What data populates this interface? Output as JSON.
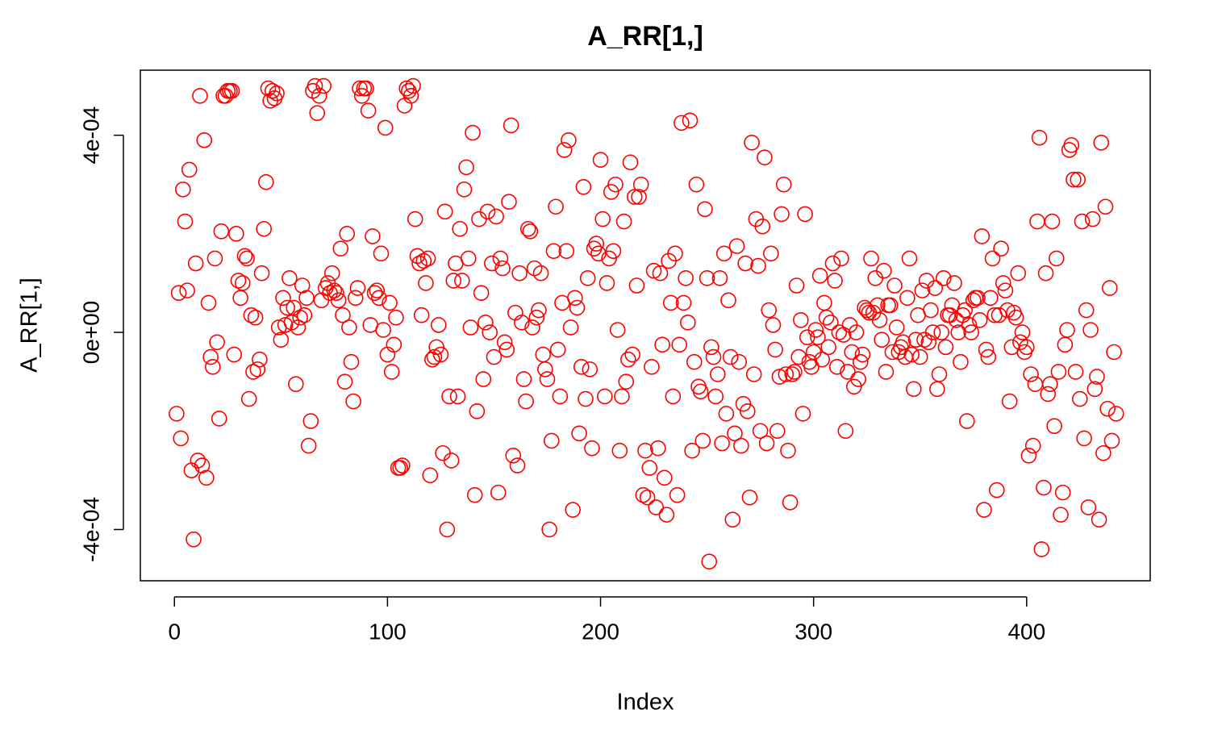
{
  "chart_data": {
    "type": "scatter",
    "title": "A_RR[1,]",
    "x_label": "Index",
    "y_label": "A_RR[1,]",
    "marker": "open-circle",
    "color": "#ff0000",
    "xlim": [
      -16,
      458
    ],
    "ylim": [
      -0.000504,
      0.000532
    ],
    "xticks": [
      0,
      100,
      200,
      300,
      400
    ],
    "yticks": [
      {
        "value": -0.0004,
        "label": "-4e-04"
      },
      {
        "value": 0,
        "label": "0e+00"
      },
      {
        "value": 0.0004,
        "label": "4e-04"
      }
    ],
    "series": [
      {
        "name": "A_RR[1,]",
        "color": "#ff0000",
        "x": [
          1,
          2,
          3,
          4,
          5,
          6,
          7,
          8,
          9,
          10,
          11,
          12,
          13,
          14,
          15,
          16,
          17,
          18,
          19,
          20,
          21,
          22,
          23,
          24,
          25,
          26,
          27,
          28,
          29,
          30,
          31,
          32,
          33,
          34,
          35,
          36,
          37,
          38,
          39,
          40,
          41,
          42,
          43,
          44,
          45,
          46,
          47,
          48,
          49,
          50,
          51,
          52,
          53,
          54,
          55,
          56,
          57,
          58,
          59,
          60,
          61,
          62,
          63,
          64,
          65,
          66,
          67,
          68,
          69,
          70,
          71,
          72,
          73,
          74,
          75,
          76,
          77,
          78,
          79,
          80,
          81,
          82,
          83,
          84,
          85,
          86,
          87,
          88,
          89,
          90,
          91,
          92,
          93,
          94,
          95,
          96,
          97,
          98,
          99,
          100,
          101,
          102,
          103,
          104,
          105,
          106,
          107,
          108,
          109,
          110,
          111,
          112,
          113,
          114,
          115,
          116,
          117,
          118,
          119,
          120,
          121,
          122,
          123,
          124,
          125,
          126,
          127,
          128,
          129,
          130,
          131,
          132,
          133,
          134,
          135,
          136,
          137,
          138,
          139,
          140,
          141,
          142,
          143,
          144,
          145,
          146,
          147,
          148,
          149,
          150,
          151,
          152,
          153,
          154,
          155,
          156,
          157,
          158,
          159,
          160,
          161,
          162,
          163,
          164,
          165,
          166,
          167,
          168,
          169,
          170,
          171,
          172,
          173,
          174,
          175,
          176,
          177,
          178,
          179,
          180,
          181,
          182,
          183,
          184,
          185,
          186,
          187,
          188,
          189,
          190,
          191,
          192,
          193,
          194,
          195,
          196,
          197,
          198,
          199,
          200,
          201,
          202,
          203,
          204,
          205,
          206,
          207,
          208,
          209,
          210,
          211,
          212,
          213,
          214,
          215,
          216,
          217,
          218,
          219,
          220,
          221,
          222,
          223,
          224,
          225,
          226,
          227,
          228,
          229,
          230,
          231,
          232,
          233,
          234,
          235,
          236,
          237,
          238,
          239,
          240,
          241,
          242,
          243,
          244,
          245,
          246,
          247,
          248,
          249,
          250,
          251,
          252,
          253,
          254,
          255,
          256,
          257,
          258,
          259,
          260,
          261,
          262,
          263,
          264,
          265,
          266,
          267,
          268,
          269,
          270,
          271,
          272,
          273,
          274,
          275,
          276,
          277,
          278,
          279,
          280,
          281,
          282,
          283,
          284,
          285,
          286,
          287,
          288,
          289,
          290,
          291,
          292,
          293,
          294,
          295,
          296,
          297,
          298,
          299,
          300,
          301,
          302,
          303,
          304,
          305,
          306,
          307,
          308,
          309,
          310,
          311,
          312,
          313,
          314,
          315,
          316,
          317,
          318,
          319,
          320,
          321,
          322,
          323,
          324,
          325,
          326,
          327,
          328,
          329,
          330,
          331,
          332,
          333,
          334,
          335,
          336,
          337,
          338,
          339,
          340,
          341,
          342,
          343,
          344,
          345,
          346,
          347,
          348,
          349,
          350,
          351,
          352,
          353,
          354,
          355,
          356,
          357,
          358,
          359,
          360,
          361,
          362,
          363,
          364,
          365,
          366,
          367,
          368,
          369,
          370,
          371,
          372,
          373,
          374,
          375,
          376,
          377,
          378,
          379,
          380,
          381,
          382,
          383,
          384,
          385,
          386,
          387,
          388,
          389,
          390,
          391,
          392,
          393,
          394,
          395,
          396,
          397,
          398,
          399,
          400,
          401,
          402,
          403,
          404,
          405,
          406,
          407,
          408,
          409,
          410,
          411,
          412,
          413,
          414,
          415,
          416,
          417,
          418,
          419,
          420,
          421,
          422,
          423,
          424,
          425,
          426,
          427,
          428,
          429,
          430,
          431,
          432,
          433,
          434,
          435,
          436,
          437,
          438,
          439,
          440,
          441,
          442
        ],
        "values": [
          -0.000165,
          8e-05,
          -0.000215,
          0.00029,
          0.000225,
          8.5e-05,
          0.00033,
          -0.00028,
          -0.00042,
          0.00014,
          -0.00026,
          0.00048,
          -0.00027,
          0.00039,
          -0.000295,
          6e-05,
          -5e-05,
          -7e-05,
          0.00015,
          -2e-05,
          -0.000175,
          0.000205,
          0.00048,
          0.00048,
          0.00049,
          0.00049,
          0.00049,
          -4.5e-05,
          0.0002,
          0.000105,
          7e-05,
          0.0001,
          0.000155,
          0.00015,
          -0.000135,
          3.5e-05,
          -8e-05,
          3e-05,
          -7.5e-05,
          -5.5e-05,
          0.00012,
          0.00021,
          0.000305,
          0.000495,
          0.00047,
          0.00049,
          0.000475,
          0.000485,
          1e-05,
          -1.5e-05,
          7e-05,
          1.5e-05,
          5e-05,
          0.00011,
          2e-05,
          5e-05,
          -0.000105,
          1e-05,
          3e-05,
          9.5e-05,
          3.5e-05,
          7e-05,
          -0.00023,
          -0.00018,
          0.00049,
          0.0005,
          0.000445,
          0.00048,
          6.5e-05,
          0.0005,
          9e-05,
          0.0001,
          8e-05,
          0.00012,
          8.5e-05,
          8e-05,
          6.5e-05,
          0.00017,
          3.5e-05,
          -0.0001,
          0.0002,
          1e-05,
          -6e-05,
          -0.00014,
          7e-05,
          9e-05,
          0.000495,
          0.00048,
          0.000495,
          0.000495,
          0.00045,
          1.5e-05,
          0.000195,
          8e-05,
          8.5e-05,
          7e-05,
          0.00016,
          5e-06,
          0.000415,
          -4.5e-05,
          6e-05,
          -8e-05,
          -2.5e-05,
          3e-05,
          -0.000275,
          -0.000275,
          -0.00027,
          0.00046,
          0.000495,
          0.00049,
          0.00048,
          0.0005,
          0.00023,
          0.000155,
          0.00014,
          3.5e-05,
          0.000145,
          0.0001,
          0.00015,
          -0.00029,
          -5.5e-05,
          -5e-05,
          -3e-05,
          1.5e-05,
          -4.5e-05,
          -0.000245,
          0.000245,
          -0.0004,
          -0.00013,
          -0.00026,
          0.000105,
          0.00014,
          -0.00013,
          0.00021,
          0.000105,
          0.00029,
          0.000335,
          0.00015,
          1e-05,
          0.000405,
          -0.00033,
          -0.00016,
          0.00023,
          8e-05,
          -9.5e-05,
          2e-05,
          0.000245,
          0.0,
          0.00014,
          -5e-05,
          0.000235,
          -0.000325,
          0.00015,
          0.00013,
          -2e-05,
          -3.5e-05,
          0.000265,
          0.00042,
          -0.00025,
          4e-05,
          -0.00027,
          0.00012,
          2e-05,
          -9.5e-05,
          -0.00014,
          0.00021,
          0.000205,
          1e-05,
          0.00013,
          3e-05,
          4.5e-05,
          0.00012,
          -4.5e-05,
          -7.5e-05,
          -9.5e-05,
          -0.0004,
          -0.00022,
          0.000165,
          0.000255,
          -3.5e-05,
          -0.00013,
          6e-05,
          0.00037,
          0.000165,
          0.00039,
          1e-05,
          -0.00036,
          7e-05,
          5e-05,
          -0.000205,
          -7e-05,
          0.000295,
          -0.000135,
          0.00011,
          -7.5e-05,
          -0.000235,
          0.00017,
          0.00018,
          0.00016,
          0.00035,
          0.00023,
          -0.00013,
          0.0001,
          0.00015,
          0.000285,
          0.000165,
          0.0003,
          5e-06,
          -0.00024,
          -0.00013,
          0.000225,
          -0.0001,
          -5.5e-05,
          0.000345,
          -4.5e-05,
          0.000275,
          9.5e-05,
          0.000275,
          0.0003,
          -0.00033,
          -0.00024,
          -0.000335,
          -0.000275,
          -7e-05,
          0.000125,
          -0.000355,
          -0.000235,
          0.00012,
          -2.5e-05,
          -0.000295,
          -0.00037,
          0.000145,
          6e-05,
          -0.00013,
          0.00016,
          -0.00033,
          -2.5e-05,
          0.000425,
          6e-05,
          0.00011,
          2e-05,
          0.00043,
          -0.00024,
          -6e-05,
          0.0003,
          -0.00011,
          -0.00012,
          -0.00022,
          0.00025,
          0.00011,
          -0.000465,
          -3e-05,
          -5e-05,
          -0.00013,
          -8.5e-05,
          0.00011,
          -0.000225,
          0.00016,
          -0.000165,
          6.5e-05,
          -5e-05,
          -0.00038,
          -0.000205,
          0.000175,
          -6e-05,
          -0.00023,
          -0.000145,
          0.00014,
          -0.00016,
          -0.000335,
          0.000385,
          -8.5e-05,
          0.00023,
          0.000135,
          -0.0002,
          0.000215,
          0.000355,
          -0.000225,
          4.5e-05,
          0.00016,
          1.5e-05,
          -3.5e-05,
          -0.0002,
          -9e-05,
          0.00024,
          0.0003,
          -8.5e-05,
          -0.00024,
          -0.000345,
          -8.5e-05,
          -8e-05,
          9.5e-05,
          -5e-05,
          2.5e-05,
          -0.000165,
          0.00024,
          -1e-05,
          -6e-05,
          -7e-05,
          -4e-05,
          5e-06,
          -1e-05,
          0.000115,
          -5.5e-05,
          6e-05,
          3e-05,
          -3e-05,
          2e-05,
          0.00014,
          0.000105,
          -7e-05,
          0.0,
          0.00015,
          -5e-06,
          -0.0002,
          -8e-05,
          1.5e-05,
          -4e-05,
          -0.00011,
          0.0,
          -9.5e-05,
          -6e-05,
          -4.5e-05,
          5e-05,
          4.5e-05,
          4e-05,
          0.00015,
          4e-05,
          0.00011,
          5.5e-05,
          2.5e-05,
          -1.5e-05,
          0.000125,
          -8e-05,
          5.5e-05,
          5.5e-05,
          -4e-05,
          9.5e-05,
          1e-05,
          -4e-05,
          -3e-05,
          -2e-05,
          -5e-05,
          7e-05,
          0.00015,
          -4.5e-05,
          -0.000115,
          -1.5e-05,
          3.5e-05,
          -5e-05,
          8.5e-05,
          -1.5e-05,
          0.000105,
          -2e-05,
          4.5e-05,
          0.0,
          9e-05,
          -0.000115,
          -8.5e-05,
          0.0,
          0.00011,
          -3e-05,
          3.5e-05,
          3.5e-05,
          5.5e-05,
          0.0001,
          2.5e-05,
          0.0,
          -6e-05,
          3.5e-05,
          4.5e-05,
          -0.00018,
          1.5e-05,
          0.0,
          6.5e-05,
          7e-05,
          7e-05,
          2.5e-05,
          0.000195,
          -0.00036,
          -3.5e-05,
          -5e-05,
          7e-05,
          0.00015,
          3.5e-05,
          -0.00032,
          3.5e-05,
          0.00017,
          0.0001,
          8.5e-05,
          4.5e-05,
          -0.00014,
          -3e-05,
          4e-05,
          3e-05,
          0.00012,
          -2e-05,
          0.0,
          -4e-05,
          -3e-05,
          -0.00025,
          -8.5e-05,
          -0.00023,
          -0.000105,
          0.000225,
          0.000395,
          -0.00044,
          -0.000315,
          0.00012,
          -0.000125,
          -0.000105,
          0.000225,
          -0.00019,
          0.00015,
          -8e-05,
          -0.00037,
          -0.000325,
          -2.5e-05,
          5e-06,
          0.00037,
          0.00038,
          0.00031,
          -8e-05,
          0.00031,
          -0.000135,
          0.000225,
          -0.000215,
          4.5e-05,
          -0.000355,
          5e-06,
          0.00023,
          -0.000115,
          -9e-05,
          -0.00038,
          0.000385,
          -0.000245,
          0.000255,
          -0.000155,
          9e-05,
          -0.00022,
          -4e-05,
          -0.000165
        ]
      }
    ]
  }
}
